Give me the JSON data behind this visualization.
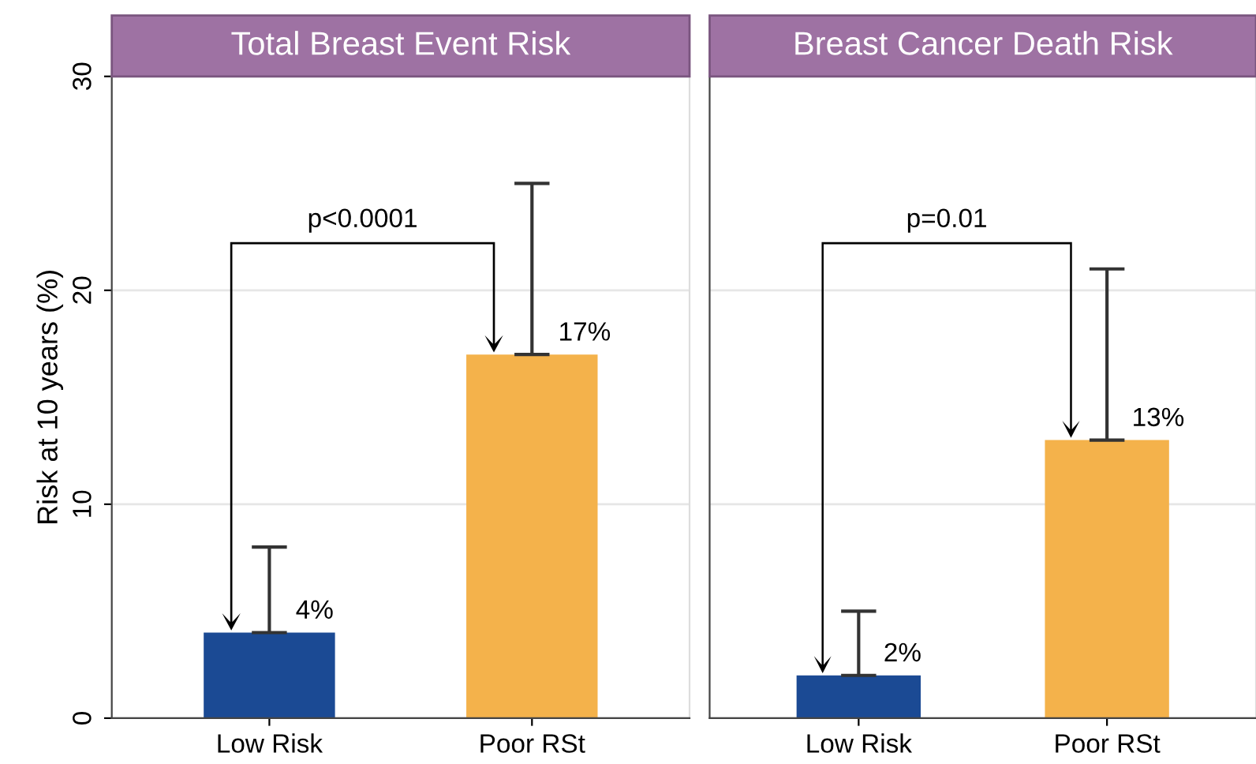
{
  "chart_data": [
    {
      "type": "bar",
      "title": "Total Breast Event Risk",
      "ylabel": "Risk at 10 years (%)",
      "categories": [
        "Low Risk",
        "Poor RSt"
      ],
      "values": [
        4,
        17
      ],
      "colors": [
        "#1b4a94",
        "#f4b24b"
      ],
      "errors": [
        [
          4,
          8
        ],
        [
          17,
          25
        ]
      ],
      "value_labels": [
        "4%",
        "17%"
      ],
      "annotations": [
        "p<0.0001"
      ],
      "ylim": [
        0,
        30
      ],
      "yticks": [
        0,
        10,
        20,
        30
      ],
      "grid": "y"
    },
    {
      "type": "bar",
      "title": "Breast Cancer Death Risk",
      "categories": [
        "Low Risk",
        "Poor RSt"
      ],
      "values": [
        2,
        13
      ],
      "colors": [
        "#1b4a94",
        "#f4b24b"
      ],
      "errors": [
        [
          2,
          5
        ],
        [
          13,
          21
        ]
      ],
      "value_labels": [
        "2%",
        "13%"
      ],
      "annotations": [
        "p=0.01"
      ],
      "ylim": [
        0,
        30
      ],
      "yticks": [
        0,
        10,
        20,
        30
      ],
      "grid": "y",
      "tick_labels": "x"
    }
  ]
}
